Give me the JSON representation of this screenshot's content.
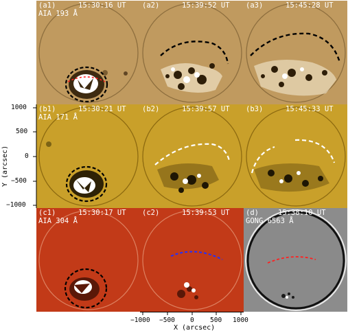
{
  "panels": [
    {
      "id": "a1",
      "tag": "(a1)",
      "time": "15:30:16 UT",
      "instrument": "AIA 193 Å",
      "bg": "#c09a5f",
      "theme": "brown"
    },
    {
      "id": "a2",
      "tag": "(a2)",
      "time": "15:39:52 UT",
      "instrument": "",
      "bg": "#c09a5f",
      "theme": "brown"
    },
    {
      "id": "a3",
      "tag": "(a3)",
      "time": "15:45:28 UT",
      "instrument": "",
      "bg": "#c09a5f",
      "theme": "brown"
    },
    {
      "id": "b1",
      "tag": "(b1)",
      "time": "15:30:21 UT",
      "instrument": "AIA 171 Å",
      "bg": "#c9a02a",
      "theme": "gold"
    },
    {
      "id": "b2",
      "tag": "(b2)",
      "time": "15:39:57 UT",
      "instrument": "",
      "bg": "#c9a02a",
      "theme": "gold"
    },
    {
      "id": "b3",
      "tag": "(b3)",
      "time": "15:45:33 UT",
      "instrument": "",
      "bg": "#c9a02a",
      "theme": "gold"
    },
    {
      "id": "c1",
      "tag": "(c1)",
      "time": "15:30:17 UT",
      "instrument": "AIA 304 Å",
      "bg": "#c23a18",
      "theme": "red"
    },
    {
      "id": "c2",
      "tag": "(c2)",
      "time": "15:39:53 UT",
      "instrument": "",
      "bg": "#c23a18",
      "theme": "red"
    },
    {
      "id": "d",
      "tag": "(d)",
      "time": "15:38:10 UT",
      "instrument": "GONG 6563 Å",
      "bg": "#8c8c8c",
      "theme": "gray"
    }
  ],
  "axes": {
    "x_title": "X (arcsec)",
    "x_ticks": [
      "−1000",
      "−500",
      "0",
      "500",
      "1000"
    ],
    "y_title": "Y (arcsec)",
    "y_ticks": [
      "1000",
      "500",
      "0",
      "−500",
      "−1000"
    ]
  },
  "colors": {
    "brown_bg": "#c09a5f",
    "gold_bg": "#c9a02a",
    "red_bg": "#c23a18",
    "gray_bg": "#8c8c8c",
    "front_black": "#000000",
    "front_white": "#ffffff",
    "front_red": "#ff2020",
    "front_blue": "#2030ff"
  }
}
